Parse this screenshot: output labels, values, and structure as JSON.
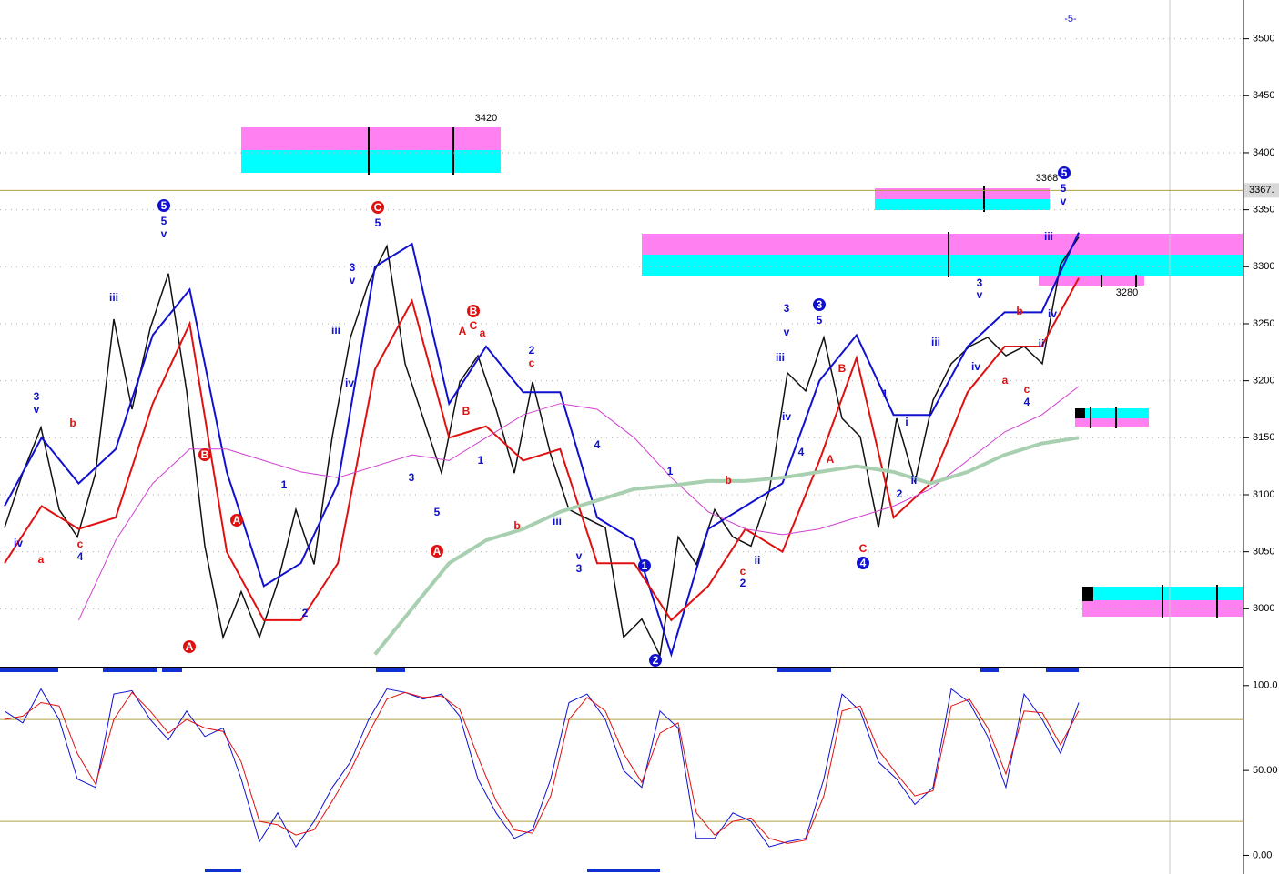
{
  "chart_data": [
    {
      "type": "line",
      "ylim": [
        2950,
        3534
      ],
      "yticks": [
        3000,
        3050,
        3100,
        3150,
        3200,
        3250,
        3300,
        3350,
        3400,
        3450,
        3500
      ],
      "grid": true,
      "last_price": {
        "value": 3367,
        "label": "3367."
      },
      "annotations": [
        "3420",
        "3368",
        "3280",
        "-5-"
      ],
      "wave_labels": [
        "5",
        "5",
        "v",
        "iii",
        "3",
        "v",
        "b",
        "c",
        "4",
        "a",
        "iv",
        "B",
        "A",
        "A",
        "C",
        "5",
        "3",
        "v",
        "iii",
        "iv",
        "1",
        "2",
        "3",
        "5",
        "A",
        "B",
        "A",
        "C",
        "a",
        "B",
        "1",
        "2",
        "c",
        "b",
        "iii",
        "v",
        "3",
        "4",
        "1",
        "2",
        "1",
        "b",
        "c",
        "2",
        "ii",
        "3",
        "v",
        "iii",
        "iv",
        "4",
        "3",
        "5",
        "B",
        "A",
        "C",
        "4",
        "1",
        "i",
        "2",
        "ii",
        "iii",
        "iv",
        "3",
        "v",
        "b",
        "a",
        "c",
        "4",
        "iii",
        "iv",
        "ii",
        "5",
        "5",
        "v"
      ],
      "series": [
        {
          "color": "#111111",
          "values": [
            3071,
            3119,
            3159,
            3087,
            3063,
            3119,
            3254,
            3175,
            3246,
            3294,
            3191,
            3055,
            2975,
            3015,
            2975,
            3023,
            3087,
            3039,
            3151,
            3238,
            3286,
            3318,
            3215,
            3167,
            3119,
            3199,
            3222,
            3175,
            3119,
            3199,
            3135,
            3087,
            3079,
            3071,
            2975,
            2991,
            2959,
            3063,
            3039,
            3087,
            3063,
            3055,
            3103,
            3207,
            3191,
            3238,
            3167,
            3151,
            3071,
            3167,
            3111,
            3183,
            3215,
            3230,
            3238,
            3222,
            3230,
            3215,
            3302,
            3326
          ]
        },
        {
          "color": "#1010d0",
          "values": [
            3090,
            3150,
            3110,
            3140,
            3240,
            3280,
            3120,
            3020,
            3040,
            3110,
            3300,
            3320,
            3180,
            3230,
            3190,
            3190,
            3080,
            3060,
            2960,
            3070,
            3090,
            3110,
            3200,
            3240,
            3170,
            3170,
            3230,
            3260,
            3260,
            3330
          ]
        },
        {
          "color": "#e01010",
          "values": [
            3040,
            3090,
            3070,
            3080,
            3180,
            3250,
            3050,
            2990,
            2990,
            3040,
            3210,
            3270,
            3150,
            3160,
            3130,
            3140,
            3040,
            3040,
            2990,
            3020,
            3070,
            3050,
            3130,
            3220,
            3080,
            3110,
            3190,
            3230,
            3230,
            3290
          ]
        },
        {
          "color": "#d040d0",
          "values": [
            null,
            null,
            2990,
            3060,
            3110,
            3140,
            3140,
            3130,
            3120,
            3115,
            3125,
            3135,
            3130,
            3150,
            3170,
            3180,
            3175,
            3150,
            3115,
            3085,
            3070,
            3065,
            3070,
            3080,
            3090,
            3105,
            3130,
            3155,
            3170,
            3195
          ]
        },
        {
          "color": "#a8d0b0",
          "values": [
            null,
            null,
            null,
            null,
            null,
            null,
            null,
            null,
            null,
            null,
            2960,
            3000,
            3040,
            3060,
            3070,
            3085,
            3095,
            3105,
            3108,
            3112,
            3112,
            3115,
            3120,
            3125,
            3120,
            3110,
            3120,
            3135,
            3145,
            3150
          ]
        }
      ]
    },
    {
      "type": "line",
      "ylim": [
        -11,
        109
      ],
      "yticks": [
        {
          "value": 0,
          "label": "0.00"
        },
        {
          "value": 50,
          "label": "50.00"
        },
        {
          "value": 100,
          "label": "100.0"
        }
      ],
      "levels": [
        20,
        80
      ],
      "series": [
        {
          "color": "#1010d0",
          "values": [
            85,
            78,
            98,
            80,
            45,
            40,
            95,
            97,
            80,
            68,
            85,
            70,
            75,
            45,
            8,
            25,
            5,
            20,
            40,
            55,
            80,
            98,
            96,
            92,
            95,
            82,
            45,
            25,
            10,
            15,
            45,
            90,
            95,
            80,
            50,
            40,
            85,
            75,
            10,
            10,
            25,
            20,
            5,
            8,
            10,
            45,
            95,
            85,
            55,
            45,
            30,
            40,
            98,
            90,
            70,
            40,
            95,
            80,
            60,
            90
          ]
        },
        {
          "color": "#e01010",
          "values": [
            80,
            82,
            90,
            88,
            60,
            42,
            80,
            96,
            85,
            72,
            80,
            75,
            73,
            55,
            20,
            18,
            12,
            15,
            32,
            50,
            72,
            92,
            96,
            93,
            94,
            86,
            58,
            32,
            15,
            13,
            35,
            80,
            93,
            85,
            60,
            43,
            72,
            78,
            25,
            12,
            20,
            22,
            10,
            7,
            9,
            35,
            85,
            88,
            62,
            48,
            35,
            38,
            88,
            92,
            75,
            48,
            85,
            84,
            65,
            85
          ]
        }
      ]
    }
  ]
}
